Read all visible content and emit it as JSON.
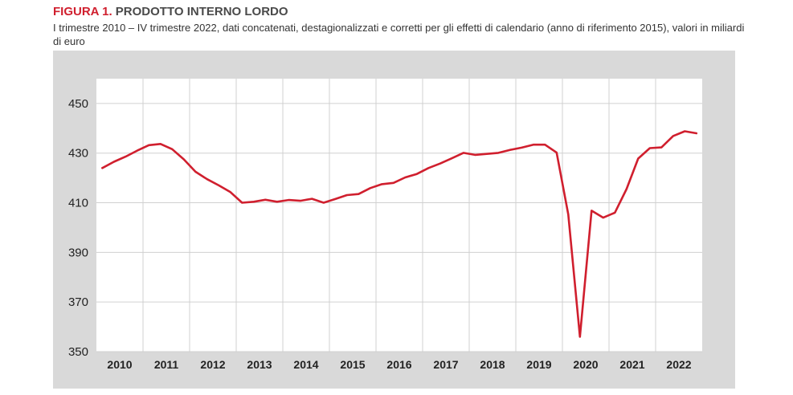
{
  "header": {
    "figure_label": "FIGURA 1.",
    "figure_title": "PRODOTTO INTERNO LORDO",
    "subtitle": "I trimestre 2010 – IV trimestre 2022, dati concatenati, destagionalizzati e corretti per gli effetti di calendario (anno di riferimento 2015), valori in miliardi di euro"
  },
  "colors": {
    "line": "#d01f2e",
    "panel": "#d9d9d9",
    "plot": "#ffffff",
    "grid": "#d0d0d0"
  },
  "chart_data": {
    "type": "line",
    "title": "PRODOTTO INTERNO LORDO",
    "ylim": [
      350,
      460
    ],
    "yticks": [
      350,
      370,
      390,
      410,
      430,
      450
    ],
    "grid": true,
    "categories": [
      "2010",
      "2011",
      "2012",
      "2013",
      "2014",
      "2015",
      "2016",
      "2017",
      "2018",
      "2019",
      "2020",
      "2021",
      "2022"
    ],
    "x": [
      "2010-T1",
      "2010-T2",
      "2010-T3",
      "2010-T4",
      "2011-T1",
      "2011-T2",
      "2011-T3",
      "2011-T4",
      "2012-T1",
      "2012-T2",
      "2012-T3",
      "2012-T4",
      "2013-T1",
      "2013-T2",
      "2013-T3",
      "2013-T4",
      "2014-T1",
      "2014-T2",
      "2014-T3",
      "2014-T4",
      "2015-T1",
      "2015-T2",
      "2015-T3",
      "2015-T4",
      "2016-T1",
      "2016-T2",
      "2016-T3",
      "2016-T4",
      "2017-T1",
      "2017-T2",
      "2017-T3",
      "2017-T4",
      "2018-T1",
      "2018-T2",
      "2018-T3",
      "2018-T4",
      "2019-T1",
      "2019-T2",
      "2019-T3",
      "2019-T4",
      "2020-T1",
      "2020-T2",
      "2020-T3",
      "2020-T4",
      "2021-T1",
      "2021-T2",
      "2021-T3",
      "2021-T4",
      "2022-T1",
      "2022-T2",
      "2022-T3",
      "2022-T4"
    ],
    "series": [
      {
        "values": [
          424.0,
          426.5,
          428.6,
          431.0,
          433.2,
          433.7,
          431.6,
          427.5,
          422.5,
          419.5,
          417.0,
          414.3,
          410.0,
          410.4,
          411.2,
          410.4,
          411.1,
          410.8,
          411.6,
          410.0,
          411.5,
          413.1,
          413.5,
          415.9,
          417.5,
          418.0,
          420.2,
          421.6,
          424.0,
          425.8,
          427.9,
          430.1,
          429.3,
          429.7,
          430.1,
          431.3,
          432.2,
          433.4,
          433.4,
          430.2,
          405.3,
          356.0,
          406.8,
          404.0,
          406.0,
          415.5,
          427.8,
          432.0,
          432.3,
          436.9,
          438.8,
          438.0
        ]
      }
    ]
  }
}
